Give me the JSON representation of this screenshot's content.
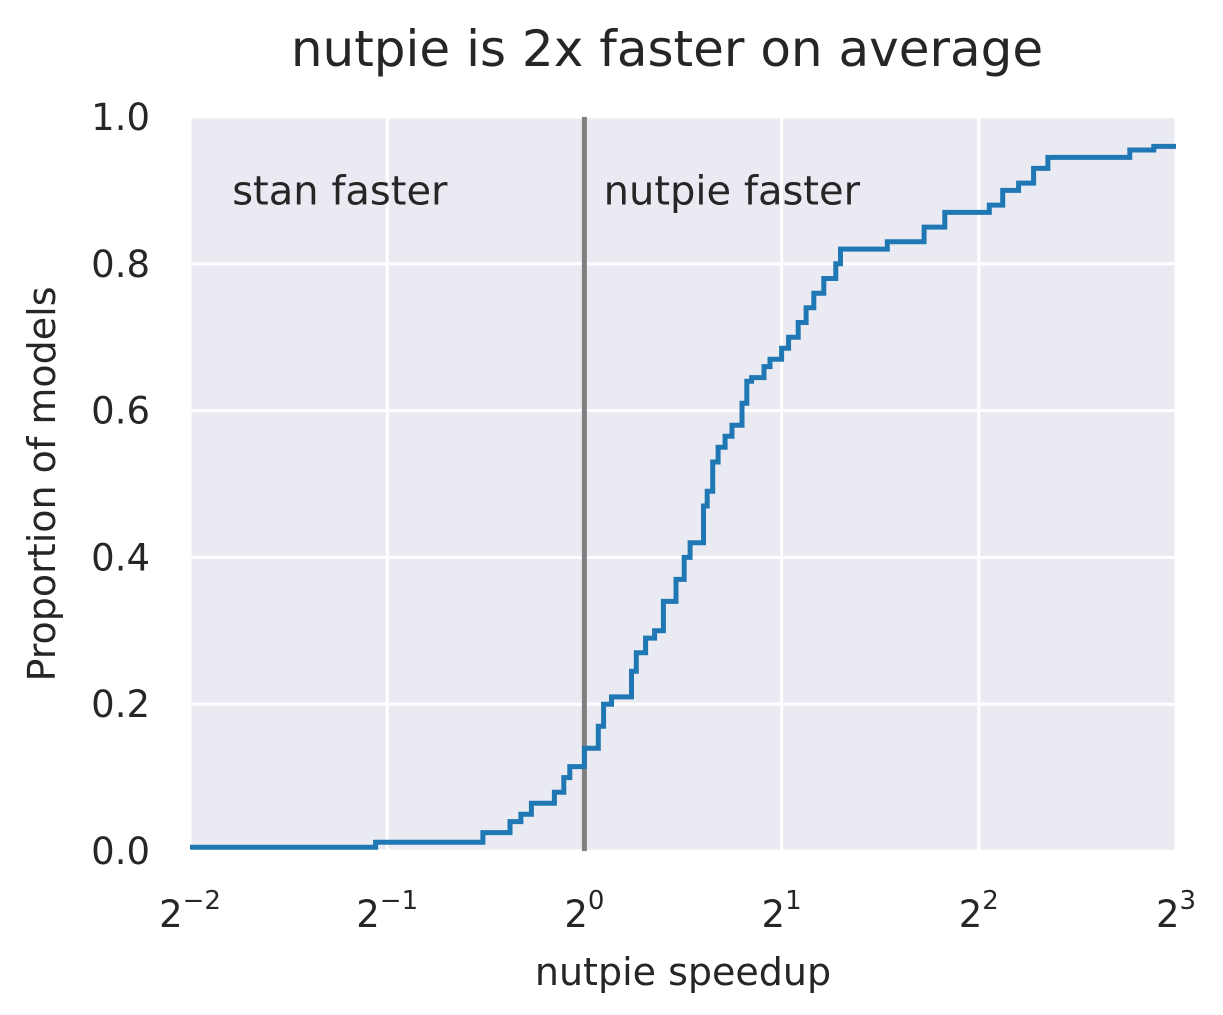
{
  "chart_data": {
    "type": "line",
    "title": "nutpie is 2x faster on average",
    "xlabel": "nutpie speedup",
    "ylabel": "Proportion of models",
    "xscale": "log2",
    "xlim": [
      0.25,
      8
    ],
    "ylim": [
      0,
      1
    ],
    "grid": true,
    "legend": "none",
    "x_ticks": [
      {
        "base": "2",
        "exp": "−2",
        "value": 0.25
      },
      {
        "base": "2",
        "exp": "−1",
        "value": 0.5
      },
      {
        "base": "2",
        "exp": "0",
        "value": 1
      },
      {
        "base": "2",
        "exp": "1",
        "value": 2
      },
      {
        "base": "2",
        "exp": "2",
        "value": 4
      },
      {
        "base": "2",
        "exp": "3",
        "value": 8
      }
    ],
    "y_ticks": [
      "0.0",
      "0.2",
      "0.4",
      "0.6",
      "0.8",
      "1.0"
    ],
    "y_tick_values": [
      0,
      0.2,
      0.4,
      0.6,
      0.8,
      1.0
    ],
    "reference_line": {
      "x": 1,
      "color": "#808080"
    },
    "annotations": [
      {
        "text": "stan faster",
        "x": 0.29,
        "y": 0.9
      },
      {
        "text": "nutpie faster",
        "x": 1.07,
        "y": 0.9
      }
    ],
    "colors": {
      "series": "#1f77b4",
      "plot_background": "#eaeaf2",
      "grid": "#ffffff"
    },
    "series": [
      {
        "type": "ecdf-step",
        "points": [
          [
            0.25,
            0.005
          ],
          [
            0.48,
            0.005
          ],
          [
            0.48,
            0.012
          ],
          [
            0.7,
            0.012
          ],
          [
            0.7,
            0.025
          ],
          [
            0.77,
            0.025
          ],
          [
            0.77,
            0.04
          ],
          [
            0.8,
            0.04
          ],
          [
            0.8,
            0.05
          ],
          [
            0.83,
            0.05
          ],
          [
            0.83,
            0.065
          ],
          [
            0.9,
            0.065
          ],
          [
            0.9,
            0.08
          ],
          [
            0.93,
            0.08
          ],
          [
            0.93,
            0.1
          ],
          [
            0.95,
            0.1
          ],
          [
            0.95,
            0.115
          ],
          [
            1.0,
            0.115
          ],
          [
            1.0,
            0.14
          ],
          [
            1.05,
            0.14
          ],
          [
            1.05,
            0.17
          ],
          [
            1.07,
            0.17
          ],
          [
            1.07,
            0.2
          ],
          [
            1.1,
            0.2
          ],
          [
            1.1,
            0.21
          ],
          [
            1.18,
            0.21
          ],
          [
            1.18,
            0.245
          ],
          [
            1.2,
            0.245
          ],
          [
            1.2,
            0.27
          ],
          [
            1.24,
            0.27
          ],
          [
            1.24,
            0.29
          ],
          [
            1.28,
            0.29
          ],
          [
            1.28,
            0.3
          ],
          [
            1.32,
            0.3
          ],
          [
            1.32,
            0.34
          ],
          [
            1.38,
            0.34
          ],
          [
            1.38,
            0.37
          ],
          [
            1.42,
            0.37
          ],
          [
            1.42,
            0.4
          ],
          [
            1.45,
            0.4
          ],
          [
            1.45,
            0.42
          ],
          [
            1.52,
            0.42
          ],
          [
            1.52,
            0.47
          ],
          [
            1.54,
            0.47
          ],
          [
            1.54,
            0.49
          ],
          [
            1.57,
            0.49
          ],
          [
            1.57,
            0.53
          ],
          [
            1.6,
            0.53
          ],
          [
            1.6,
            0.55
          ],
          [
            1.64,
            0.55
          ],
          [
            1.64,
            0.565
          ],
          [
            1.68,
            0.565
          ],
          [
            1.68,
            0.58
          ],
          [
            1.74,
            0.58
          ],
          [
            1.74,
            0.61
          ],
          [
            1.77,
            0.61
          ],
          [
            1.77,
            0.64
          ],
          [
            1.8,
            0.64
          ],
          [
            1.8,
            0.645
          ],
          [
            1.88,
            0.645
          ],
          [
            1.88,
            0.66
          ],
          [
            1.92,
            0.66
          ],
          [
            1.92,
            0.67
          ],
          [
            2.0,
            0.67
          ],
          [
            2.0,
            0.685
          ],
          [
            2.05,
            0.685
          ],
          [
            2.05,
            0.7
          ],
          [
            2.12,
            0.7
          ],
          [
            2.12,
            0.72
          ],
          [
            2.18,
            0.72
          ],
          [
            2.18,
            0.74
          ],
          [
            2.24,
            0.74
          ],
          [
            2.24,
            0.76
          ],
          [
            2.32,
            0.76
          ],
          [
            2.32,
            0.78
          ],
          [
            2.42,
            0.78
          ],
          [
            2.42,
            0.8
          ],
          [
            2.46,
            0.8
          ],
          [
            2.46,
            0.82
          ],
          [
            2.9,
            0.82
          ],
          [
            2.9,
            0.83
          ],
          [
            3.3,
            0.83
          ],
          [
            3.3,
            0.85
          ],
          [
            3.55,
            0.85
          ],
          [
            3.55,
            0.87
          ],
          [
            4.15,
            0.87
          ],
          [
            4.15,
            0.88
          ],
          [
            4.35,
            0.88
          ],
          [
            4.35,
            0.9
          ],
          [
            4.6,
            0.9
          ],
          [
            4.6,
            0.91
          ],
          [
            4.85,
            0.91
          ],
          [
            4.85,
            0.93
          ],
          [
            5.1,
            0.93
          ],
          [
            5.1,
            0.945
          ],
          [
            6.8,
            0.945
          ],
          [
            6.8,
            0.955
          ],
          [
            7.4,
            0.955
          ],
          [
            7.4,
            0.96
          ],
          [
            8.0,
            0.96
          ]
        ]
      }
    ]
  }
}
